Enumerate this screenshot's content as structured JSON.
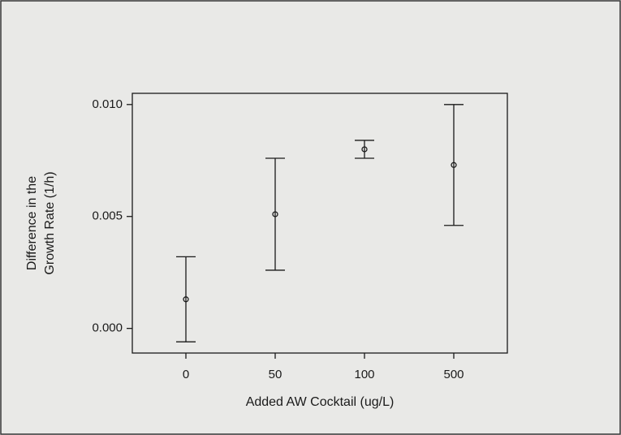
{
  "chart_data": {
    "type": "errorbar",
    "categories": [
      "0",
      "50",
      "100",
      "500"
    ],
    "values": [
      0.0013,
      0.0051,
      0.008,
      0.0073
    ],
    "errors": [
      0.0019,
      0.0025,
      0.0004,
      0.0027
    ],
    "color": "#1a1a1a",
    "xlabel": "Added AW Cocktail (ug/L)",
    "ylabel": [
      "Difference in the",
      "Growth Rate (1/h)"
    ],
    "ylim": [
      -0.0011,
      0.0105
    ],
    "yticks": [
      {
        "value": 0,
        "label": "0.000"
      },
      {
        "value": 0.005,
        "label": "0.005"
      },
      {
        "value": 0.01,
        "label": "0.010"
      }
    ]
  }
}
